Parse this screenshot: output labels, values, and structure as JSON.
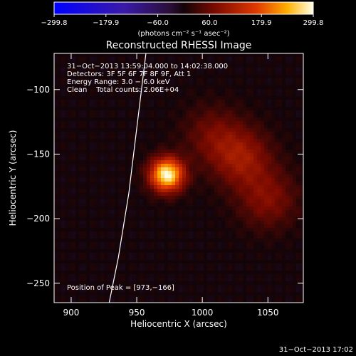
{
  "chart_data": {
    "type": "heatmap",
    "title": "Reconstructed RHESSI Image",
    "xlabel": "Heliocentric X (arcsec)",
    "ylabel": "Heliocentric Y (arcsec)",
    "xlim": [
      887,
      1077
    ],
    "ylim": [
      -265,
      -72
    ],
    "x_ticks": [
      {
        "value": 900,
        "label": "900"
      },
      {
        "value": 950,
        "label": "950"
      },
      {
        "value": 1000,
        "label": "1000"
      },
      {
        "value": 1050,
        "label": "1050"
      }
    ],
    "y_ticks": [
      {
        "value": -100,
        "label": "−100"
      },
      {
        "value": -150,
        "label": "−150"
      },
      {
        "value": -200,
        "label": "−200"
      },
      {
        "value": -250,
        "label": "−250"
      }
    ],
    "colorbar": {
      "range": [
        -299.8,
        299.8
      ],
      "ticks": [
        {
          "value": -299.8,
          "label": "−299.8"
        },
        {
          "value": -179.9,
          "label": "−179.9"
        },
        {
          "value": -60.0,
          "label": "−60.0"
        },
        {
          "value": 60.0,
          "label": "60.0"
        },
        {
          "value": 179.9,
          "label": "179.9"
        },
        {
          "value": 299.8,
          "label": "299.8"
        }
      ],
      "units_label": "(photons cm⁻² s⁻¹ asec⁻²)"
    },
    "annotations": [
      "31−Oct−2013 13:59:04.000 to 14:02:38.000",
      "Detectors: 3F 5F 6F 7F 8F 9F, Att 1",
      "Energy Range: 3.0 − 6.0 keV",
      "Clean    Total counts: 2.06E+04"
    ],
    "peak_label": "Position of Peak = [973,−166]",
    "sources": [
      {
        "x": 973,
        "y": -166,
        "peak": 299.8
      },
      {
        "x": 1030,
        "y": -153,
        "peak": 95
      },
      {
        "x": 1050,
        "y": -185,
        "peak": 75
      },
      {
        "x": 1008,
        "y": -135,
        "peak": 60
      }
    ],
    "limb_curve": [
      [
        957,
        -72
      ],
      [
        950,
        -130
      ],
      [
        944,
        -180
      ],
      [
        936,
        -230
      ],
      [
        929,
        -265
      ]
    ],
    "timestamp": "31−Oct−2013 17:02"
  }
}
